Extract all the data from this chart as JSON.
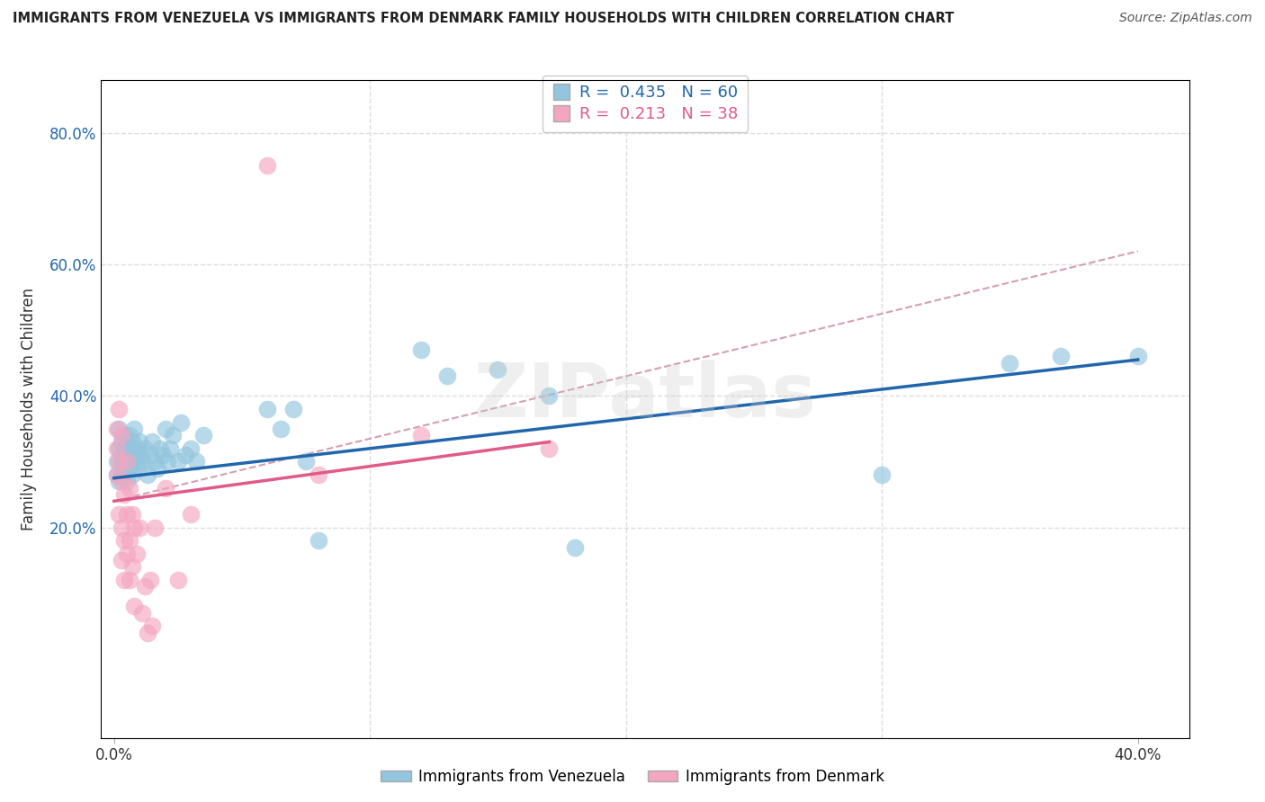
{
  "title": "IMMIGRANTS FROM VENEZUELA VS IMMIGRANTS FROM DENMARK FAMILY HOUSEHOLDS WITH CHILDREN CORRELATION CHART",
  "source": "Source: ZipAtlas.com",
  "legend_blue": {
    "R": "0.435",
    "N": "60",
    "label": "Immigrants from Venezuela"
  },
  "legend_pink": {
    "R": "0.213",
    "N": "38",
    "label": "Immigrants from Denmark"
  },
  "blue_color": "#92c5de",
  "pink_color": "#f4a6c0",
  "blue_line_color": "#2166ac",
  "pink_line_color": "#e05a8a",
  "dashed_line_color": "#d4a0b0",
  "xlim": [
    -0.005,
    0.42
  ],
  "ylim": [
    -0.12,
    0.88
  ],
  "yticks": [
    0.2,
    0.4,
    0.6,
    0.8
  ],
  "ytick_labels": [
    "20.0%",
    "40.0%",
    "60.0%",
    "80.0%"
  ],
  "xtick_left_label": "0.0%",
  "xtick_right_label": "40.0%",
  "blue_scatter_x": [
    0.001,
    0.001,
    0.002,
    0.002,
    0.002,
    0.003,
    0.003,
    0.003,
    0.003,
    0.004,
    0.004,
    0.004,
    0.005,
    0.005,
    0.005,
    0.006,
    0.006,
    0.006,
    0.007,
    0.007,
    0.008,
    0.008,
    0.009,
    0.009,
    0.01,
    0.01,
    0.01,
    0.011,
    0.012,
    0.013,
    0.014,
    0.015,
    0.016,
    0.017,
    0.018,
    0.019,
    0.02,
    0.021,
    0.022,
    0.023,
    0.025,
    0.026,
    0.028,
    0.03,
    0.032,
    0.035,
    0.06,
    0.065,
    0.07,
    0.075,
    0.08,
    0.12,
    0.13,
    0.15,
    0.17,
    0.18,
    0.3,
    0.35,
    0.37,
    0.4
  ],
  "blue_scatter_y": [
    0.3,
    0.28,
    0.32,
    0.35,
    0.27,
    0.3,
    0.33,
    0.28,
    0.31,
    0.29,
    0.32,
    0.34,
    0.3,
    0.33,
    0.27,
    0.31,
    0.34,
    0.29,
    0.28,
    0.33,
    0.31,
    0.35,
    0.3,
    0.32,
    0.29,
    0.31,
    0.33,
    0.3,
    0.32,
    0.28,
    0.31,
    0.33,
    0.3,
    0.29,
    0.32,
    0.31,
    0.35,
    0.3,
    0.32,
    0.34,
    0.3,
    0.36,
    0.31,
    0.32,
    0.3,
    0.34,
    0.38,
    0.35,
    0.38,
    0.3,
    0.18,
    0.47,
    0.43,
    0.44,
    0.4,
    0.17,
    0.28,
    0.45,
    0.46,
    0.46
  ],
  "pink_scatter_x": [
    0.001,
    0.001,
    0.001,
    0.002,
    0.002,
    0.002,
    0.003,
    0.003,
    0.003,
    0.003,
    0.004,
    0.004,
    0.004,
    0.005,
    0.005,
    0.005,
    0.006,
    0.006,
    0.006,
    0.007,
    0.007,
    0.008,
    0.008,
    0.009,
    0.01,
    0.011,
    0.012,
    0.013,
    0.014,
    0.015,
    0.016,
    0.02,
    0.025,
    0.03,
    0.06,
    0.08,
    0.12,
    0.17
  ],
  "pink_scatter_y": [
    0.35,
    0.32,
    0.28,
    0.38,
    0.3,
    0.22,
    0.34,
    0.27,
    0.2,
    0.15,
    0.25,
    0.18,
    0.12,
    0.3,
    0.22,
    0.16,
    0.26,
    0.18,
    0.12,
    0.22,
    0.14,
    0.2,
    0.08,
    0.16,
    0.2,
    0.07,
    0.11,
    0.04,
    0.12,
    0.05,
    0.2,
    0.26,
    0.12,
    0.22,
    0.75,
    0.28,
    0.34,
    0.32
  ],
  "blue_trendline_x": [
    0.0,
    0.4
  ],
  "blue_trendline_y": [
    0.275,
    0.455
  ],
  "pink_trendline_x": [
    0.0,
    0.17
  ],
  "pink_trendline_y": [
    0.24,
    0.33
  ],
  "dashed_line_x": [
    0.0,
    0.4
  ],
  "dashed_line_y": [
    0.24,
    0.62
  ],
  "watermark": "ZIPatlas",
  "watermark_color": "#cccccc",
  "background_color": "#ffffff",
  "grid_color": "#dddddd"
}
